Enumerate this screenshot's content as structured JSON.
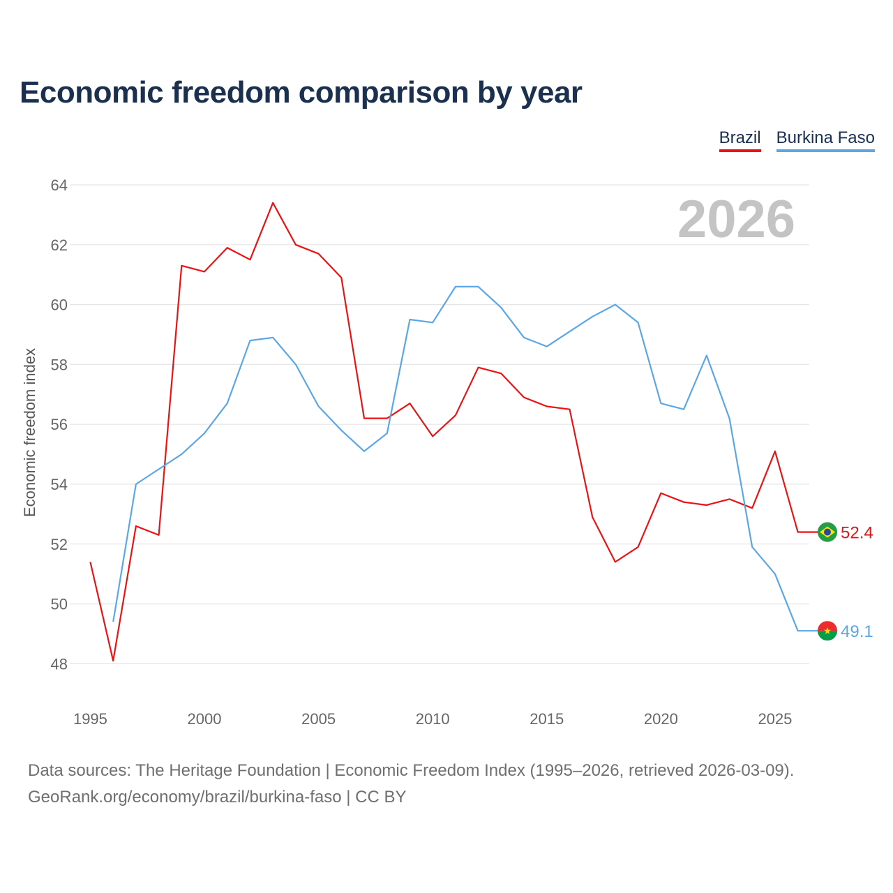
{
  "chart_data": {
    "type": "line",
    "title": "Economic freedom comparison by year",
    "ylabel": "Economic freedom index",
    "xlabel": "",
    "year_watermark": "2026",
    "x": [
      1995,
      1996,
      1997,
      1998,
      1999,
      2000,
      2001,
      2002,
      2003,
      2004,
      2005,
      2006,
      2007,
      2008,
      2009,
      2010,
      2011,
      2012,
      2013,
      2014,
      2015,
      2016,
      2017,
      2018,
      2019,
      2020,
      2021,
      2022,
      2023,
      2024,
      2025,
      2026
    ],
    "xlim": [
      1994.1,
      2026.5
    ],
    "ylim": [
      47.1,
      64.0
    ],
    "xticks": [
      1995,
      2000,
      2005,
      2010,
      2015,
      2020,
      2025
    ],
    "yticks": [
      48,
      50,
      52,
      54,
      56,
      58,
      60,
      62,
      64
    ],
    "grid": true,
    "legend_position": "top-right",
    "series": [
      {
        "name": "Brazil",
        "color": "#ee1111",
        "values": [
          51.4,
          48.1,
          52.6,
          52.3,
          61.3,
          61.1,
          61.9,
          61.5,
          63.4,
          62.0,
          61.7,
          60.9,
          56.2,
          56.2,
          56.7,
          55.6,
          56.3,
          57.9,
          57.7,
          56.9,
          56.6,
          56.5,
          52.9,
          51.4,
          51.9,
          53.7,
          53.4,
          53.3,
          53.5,
          53.2,
          55.1,
          52.4
        ],
        "end_label": "52.4",
        "flag_icon": "brazil-flag-icon"
      },
      {
        "name": "Burkina Faso",
        "color": "#5ba7e6",
        "values": [
          null,
          49.4,
          54.0,
          54.5,
          55.0,
          55.7,
          56.7,
          58.8,
          58.9,
          58.0,
          56.6,
          55.8,
          55.1,
          55.7,
          59.5,
          59.4,
          60.6,
          60.6,
          59.9,
          58.9,
          58.6,
          59.1,
          59.6,
          60.0,
          59.4,
          56.7,
          56.5,
          58.3,
          56.2,
          51.9,
          51.0,
          49.1
        ],
        "end_label": "49.1",
        "flag_icon": "burkina-faso-flag-icon"
      }
    ]
  },
  "footer": {
    "line1": "Data sources: The Heritage Foundation | Economic Freedom Index (1995–2026, retrieved 2026-03-09).",
    "line2": "GeoRank.org/economy/brazil/burkina-faso | CC BY"
  }
}
